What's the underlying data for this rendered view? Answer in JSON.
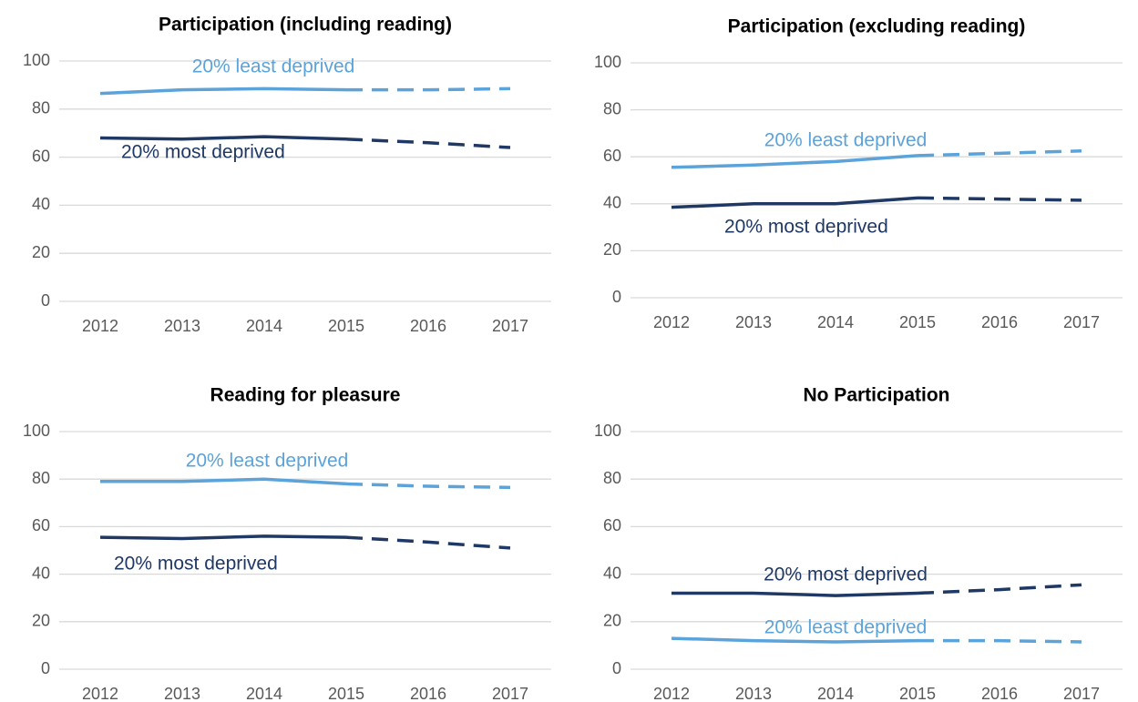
{
  "chart_data": [
    {
      "type": "line",
      "title": "Participation (including reading)",
      "categories": [
        "2012",
        "2013",
        "2014",
        "2015",
        "2016",
        "2017"
      ],
      "series": [
        {
          "name": "20% least deprived",
          "color": "#5ba3d9",
          "values": [
            86.5,
            88,
            88.5,
            88,
            88,
            88.5
          ]
        },
        {
          "name": "20% most deprived",
          "color": "#1f3864",
          "values": [
            68,
            67.5,
            68.5,
            67.5,
            66,
            64
          ]
        }
      ],
      "ylim": [
        0,
        100
      ],
      "yticks": [
        0,
        20,
        40,
        60,
        80,
        100
      ],
      "grid": true,
      "dashed_after": "2015"
    },
    {
      "type": "line",
      "title": "Participation (excluding reading)",
      "categories": [
        "2012",
        "2013",
        "2014",
        "2015",
        "2016",
        "2017"
      ],
      "series": [
        {
          "name": "20% least deprived",
          "color": "#5ba3d9",
          "values": [
            55.5,
            56.5,
            58,
            60.5,
            61.5,
            62.5
          ]
        },
        {
          "name": "20% most deprived",
          "color": "#1f3864",
          "values": [
            38.5,
            40,
            40,
            42.5,
            42,
            41.5
          ]
        }
      ],
      "ylim": [
        0,
        100
      ],
      "yticks": [
        0,
        20,
        40,
        60,
        80,
        100
      ],
      "grid": true,
      "dashed_after": "2015"
    },
    {
      "type": "line",
      "title": "Reading for pleasure",
      "categories": [
        "2012",
        "2013",
        "2014",
        "2015",
        "2016",
        "2017"
      ],
      "series": [
        {
          "name": "20% least deprived",
          "color": "#5ba3d9",
          "values": [
            79,
            79,
            80,
            78,
            77,
            76.5
          ]
        },
        {
          "name": "20% most deprived",
          "color": "#1f3864",
          "values": [
            55.5,
            55,
            56,
            55.5,
            53.5,
            51
          ]
        }
      ],
      "ylim": [
        0,
        100
      ],
      "yticks": [
        0,
        20,
        40,
        60,
        80,
        100
      ],
      "grid": true,
      "dashed_after": "2015"
    },
    {
      "type": "line",
      "title": "No Participation",
      "categories": [
        "2012",
        "2013",
        "2014",
        "2015",
        "2016",
        "2017"
      ],
      "series": [
        {
          "name": "20% most deprived",
          "color": "#1f3864",
          "values": [
            32,
            32,
            31,
            32,
            33.5,
            35.5
          ]
        },
        {
          "name": "20% least deprived",
          "color": "#5ba3d9",
          "values": [
            13,
            12,
            11.5,
            12,
            12,
            11.5
          ]
        }
      ],
      "ylim": [
        0,
        100
      ],
      "yticks": [
        0,
        20,
        40,
        60,
        80,
        100
      ],
      "grid": true,
      "dashed_after": "2015"
    }
  ]
}
